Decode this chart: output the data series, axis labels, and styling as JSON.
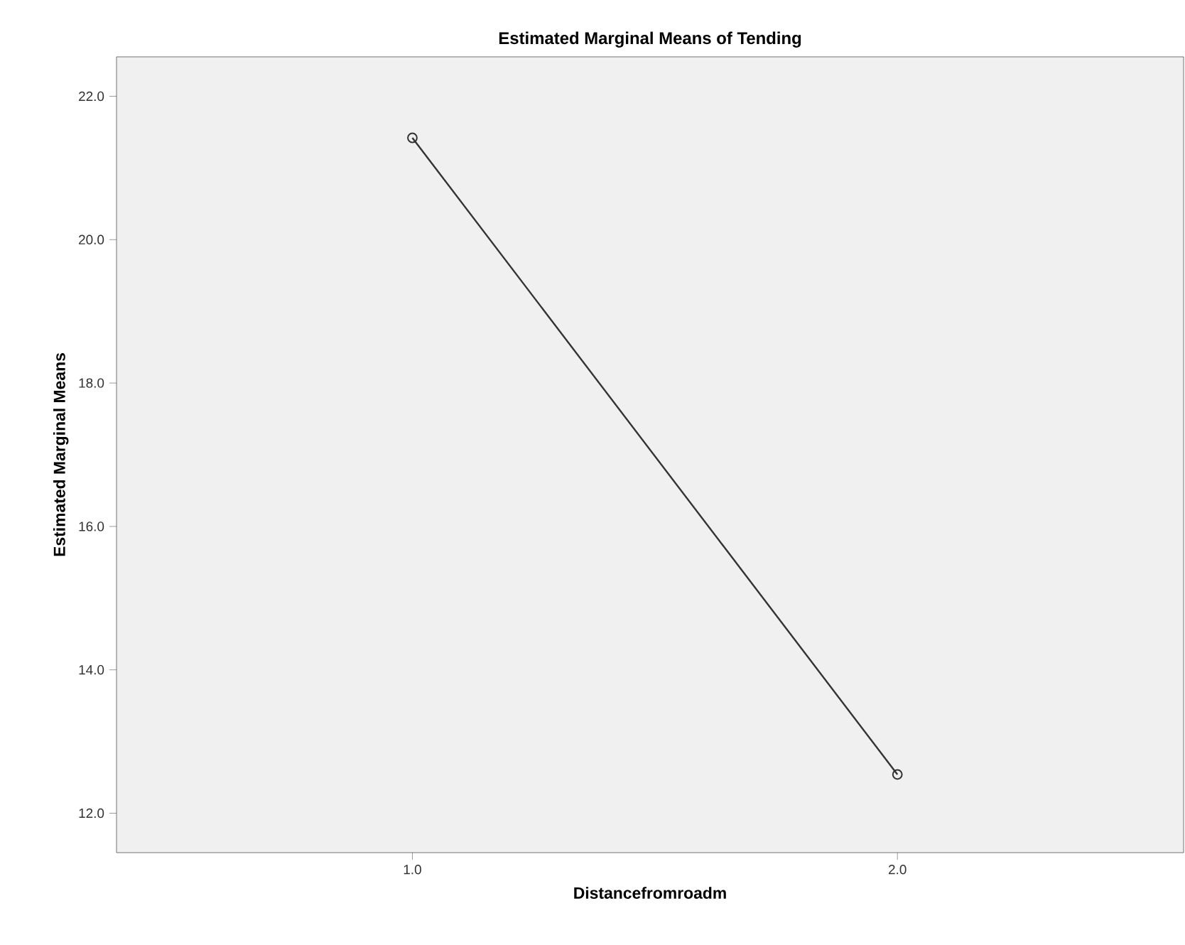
{
  "chart_data": {
    "type": "line",
    "title": "Estimated Marginal Means of Tending",
    "xlabel": "Distancefromroadm",
    "ylabel": "Estimated Marginal Means",
    "categories": [
      "1.0",
      "2.0"
    ],
    "values": [
      21.42,
      12.54
    ],
    "color": "#333333",
    "marker": "circle",
    "line_style": "solid",
    "ylim": [
      11.45,
      22.55
    ],
    "yticks": [
      {
        "value": 12,
        "label": "12.0"
      },
      {
        "value": 14,
        "label": "14.0"
      },
      {
        "value": 16,
        "label": "16.0"
      },
      {
        "value": 18,
        "label": "18.0"
      },
      {
        "value": 20,
        "label": "20.0"
      },
      {
        "value": 22,
        "label": "22.0"
      }
    ]
  }
}
